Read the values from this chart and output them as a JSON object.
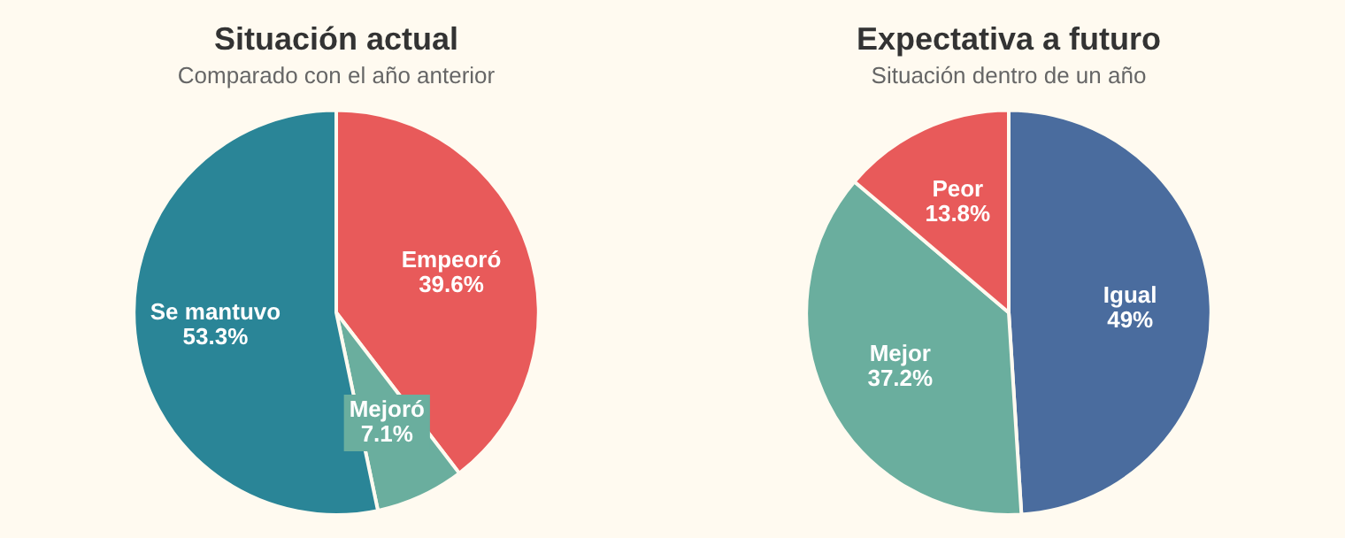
{
  "chart_data": [
    {
      "type": "pie",
      "title": "Situación actual",
      "subtitle": "Comparado con el año anterior",
      "categories": [
        "Empeoró",
        "Mejoró",
        "Se mantuvo"
      ],
      "values": [
        39.6,
        7.1,
        53.3
      ],
      "value_labels": [
        "39.6%",
        "7.1%",
        "53.3%"
      ],
      "colors": [
        "#e85a5a",
        "#6aae9e",
        "#2a8597"
      ]
    },
    {
      "type": "pie",
      "title": "Expectativa a futuro",
      "subtitle": "Situación dentro de un año",
      "categories": [
        "Igual",
        "Mejor",
        "Peor"
      ],
      "values": [
        49,
        37.2,
        13.8
      ],
      "value_labels": [
        "49%",
        "37.2%",
        "13.8%"
      ],
      "colors": [
        "#4a6c9e",
        "#6aae9e",
        "#e85a5a"
      ]
    }
  ]
}
